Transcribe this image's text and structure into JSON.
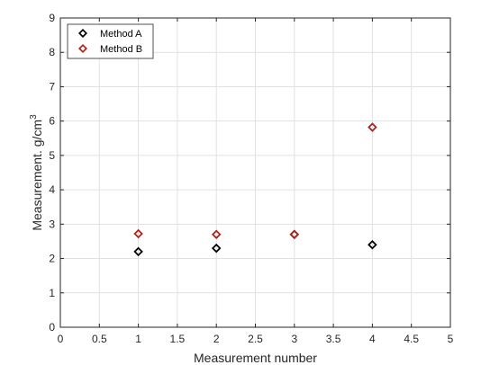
{
  "chart_data": {
    "type": "scatter",
    "title": "",
    "xlabel": "Measurement number",
    "ylabel_prefix": "Measurement. g/cm",
    "ylabel_sup": "3",
    "xlim": [
      0,
      5
    ],
    "ylim": [
      0,
      9
    ],
    "xticks": [
      0,
      0.5,
      1,
      1.5,
      2,
      2.5,
      3,
      3.5,
      4,
      4.5,
      5
    ],
    "xtick_labels": [
      "0",
      "0.5",
      "1",
      "1.5",
      "2",
      "2.5",
      "3",
      "3.5",
      "4",
      "4.5",
      "5"
    ],
    "yticks": [
      0,
      1,
      2,
      3,
      4,
      5,
      6,
      7,
      8,
      9
    ],
    "ytick_labels": [
      "0",
      "1",
      "2",
      "3",
      "4",
      "5",
      "6",
      "7",
      "8",
      "9"
    ],
    "grid": true,
    "legend_position": "top-left",
    "marker": "diamond",
    "series": [
      {
        "name": "Method A",
        "color": "#000000",
        "x": [
          1,
          2,
          3,
          4
        ],
        "y": [
          2.2,
          2.3,
          2.7,
          2.4
        ]
      },
      {
        "name": "Method B",
        "color": "#b2221b",
        "x": [
          1,
          2,
          3,
          4
        ],
        "y": [
          2.72,
          2.7,
          2.7,
          5.82
        ]
      }
    ]
  }
}
